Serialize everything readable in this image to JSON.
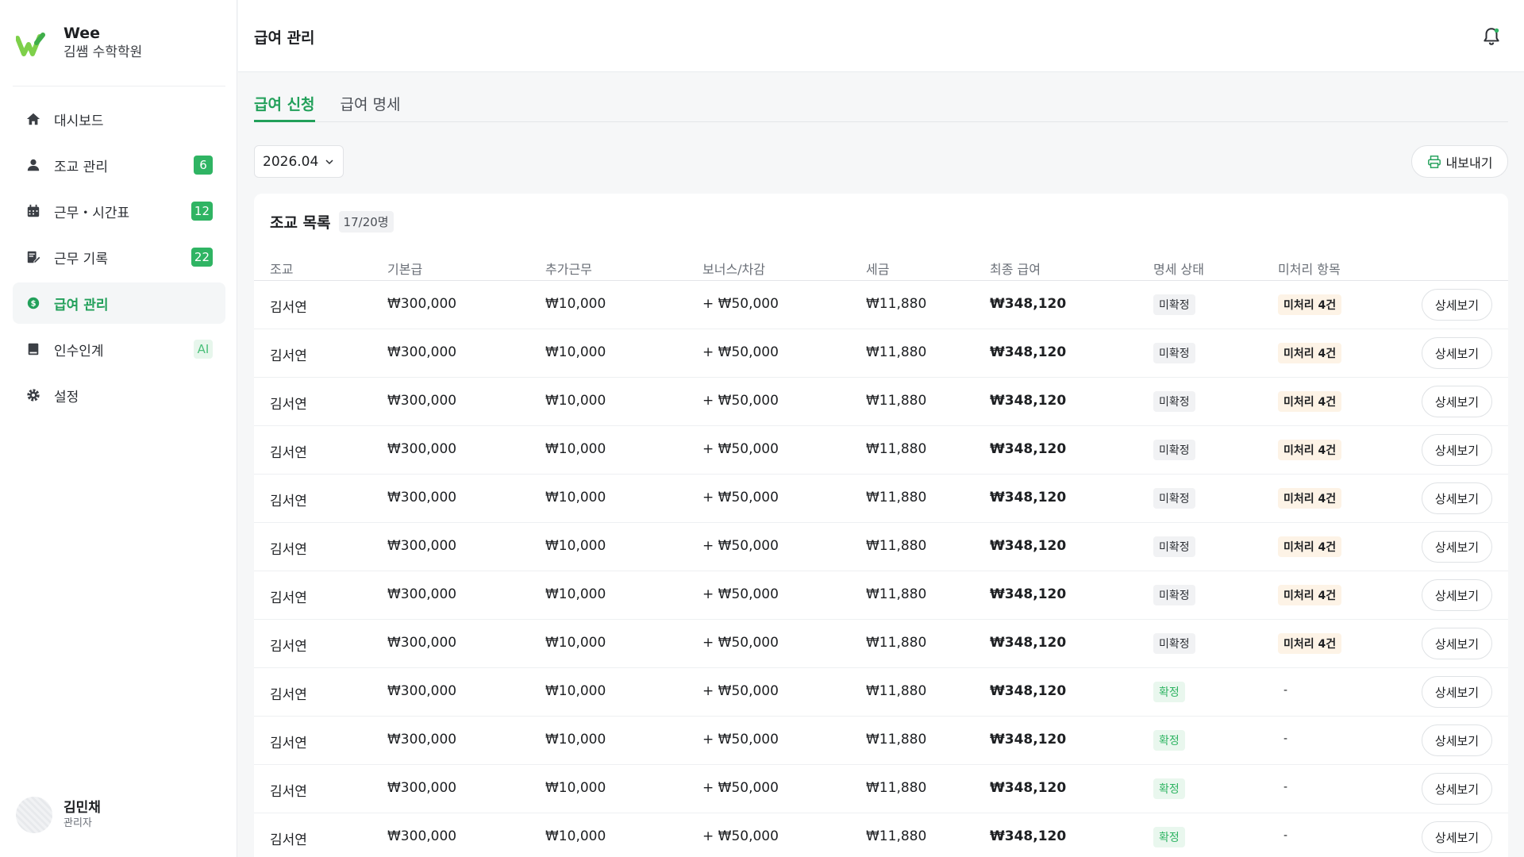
{
  "brand": {
    "name": "Wee",
    "academy": "김쌤 수학학원"
  },
  "sidebar": {
    "items": [
      {
        "id": "dashboard",
        "label": "대시보드",
        "icon": "home-icon",
        "badge": ""
      },
      {
        "id": "assistants",
        "label": "조교 관리",
        "icon": "person-icon",
        "badge": "6"
      },
      {
        "id": "schedule",
        "label": "근무・시간표",
        "icon": "calendar-icon",
        "badge": "12"
      },
      {
        "id": "worklog",
        "label": "근무 기록",
        "icon": "edit-note-icon",
        "badge": "22"
      },
      {
        "id": "payroll",
        "label": "급여 관리",
        "icon": "dollar-icon",
        "badge": "",
        "active": true
      },
      {
        "id": "handover",
        "label": "인수인계",
        "icon": "book-icon",
        "badge": "AI"
      },
      {
        "id": "settings",
        "label": "설정",
        "icon": "gear-icon",
        "badge": ""
      }
    ]
  },
  "user": {
    "name": "김민채",
    "role": "관리자"
  },
  "header": {
    "title": "급여 관리"
  },
  "tabs": [
    {
      "label": "급여 신청",
      "active": true
    },
    {
      "label": "급여 명세",
      "active": false
    }
  ],
  "toolbar": {
    "month": "2026.04",
    "export_label": "내보내기"
  },
  "list": {
    "title": "조교 목록",
    "count": "17/20명",
    "columns": [
      "조교",
      "기본급",
      "추가근무",
      "보너스/차감",
      "세금",
      "최종 급여",
      "명세 상태",
      "미처리 항목"
    ],
    "detail_label": "상세보기",
    "rows": [
      {
        "name": "김서연",
        "base": "₩300,000",
        "overtime": "₩10,000",
        "bonus": "+ ₩50,000",
        "tax": "₩11,880",
        "final": "₩348,120",
        "status": "미확정",
        "status_type": "pending",
        "pending": "미처리 4건"
      },
      {
        "name": "김서연",
        "base": "₩300,000",
        "overtime": "₩10,000",
        "bonus": "+ ₩50,000",
        "tax": "₩11,880",
        "final": "₩348,120",
        "status": "미확정",
        "status_type": "pending",
        "pending": "미처리 4건"
      },
      {
        "name": "김서연",
        "base": "₩300,000",
        "overtime": "₩10,000",
        "bonus": "+ ₩50,000",
        "tax": "₩11,880",
        "final": "₩348,120",
        "status": "미확정",
        "status_type": "pending",
        "pending": "미처리 4건"
      },
      {
        "name": "김서연",
        "base": "₩300,000",
        "overtime": "₩10,000",
        "bonus": "+ ₩50,000",
        "tax": "₩11,880",
        "final": "₩348,120",
        "status": "미확정",
        "status_type": "pending",
        "pending": "미처리 4건"
      },
      {
        "name": "김서연",
        "base": "₩300,000",
        "overtime": "₩10,000",
        "bonus": "+ ₩50,000",
        "tax": "₩11,880",
        "final": "₩348,120",
        "status": "미확정",
        "status_type": "pending",
        "pending": "미처리 4건"
      },
      {
        "name": "김서연",
        "base": "₩300,000",
        "overtime": "₩10,000",
        "bonus": "+ ₩50,000",
        "tax": "₩11,880",
        "final": "₩348,120",
        "status": "미확정",
        "status_type": "pending",
        "pending": "미처리 4건"
      },
      {
        "name": "김서연",
        "base": "₩300,000",
        "overtime": "₩10,000",
        "bonus": "+ ₩50,000",
        "tax": "₩11,880",
        "final": "₩348,120",
        "status": "미확정",
        "status_type": "pending",
        "pending": "미처리 4건"
      },
      {
        "name": "김서연",
        "base": "₩300,000",
        "overtime": "₩10,000",
        "bonus": "+ ₩50,000",
        "tax": "₩11,880",
        "final": "₩348,120",
        "status": "미확정",
        "status_type": "pending",
        "pending": "미처리 4건"
      },
      {
        "name": "김서연",
        "base": "₩300,000",
        "overtime": "₩10,000",
        "bonus": "+ ₩50,000",
        "tax": "₩11,880",
        "final": "₩348,120",
        "status": "확정",
        "status_type": "done",
        "pending": "-"
      },
      {
        "name": "김서연",
        "base": "₩300,000",
        "overtime": "₩10,000",
        "bonus": "+ ₩50,000",
        "tax": "₩11,880",
        "final": "₩348,120",
        "status": "확정",
        "status_type": "done",
        "pending": "-"
      },
      {
        "name": "김서연",
        "base": "₩300,000",
        "overtime": "₩10,000",
        "bonus": "+ ₩50,000",
        "tax": "₩11,880",
        "final": "₩348,120",
        "status": "확정",
        "status_type": "done",
        "pending": "-"
      },
      {
        "name": "김서연",
        "base": "₩300,000",
        "overtime": "₩10,000",
        "bonus": "+ ₩50,000",
        "tax": "₩11,880",
        "final": "₩348,120",
        "status": "확정",
        "status_type": "done",
        "pending": "-"
      }
    ]
  },
  "colors": {
    "accent": "#22a05a",
    "badge": "#2fb463",
    "pending_bg": "#fdf3e6"
  }
}
